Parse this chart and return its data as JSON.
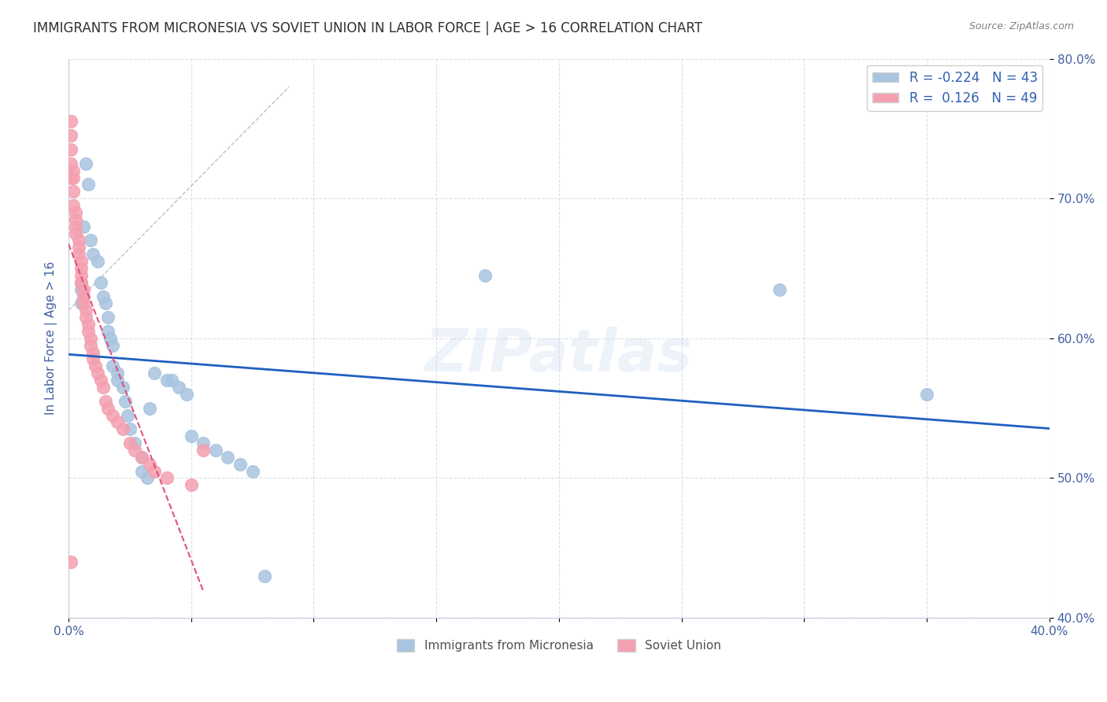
{
  "title": "IMMIGRANTS FROM MICRONESIA VS SOVIET UNION IN LABOR FORCE | AGE > 16 CORRELATION CHART",
  "source": "Source: ZipAtlas.com",
  "ylabel": "In Labor Force | Age > 16",
  "x_min": 0.0,
  "x_max": 0.4,
  "y_min": 0.4,
  "y_max": 0.8,
  "y_ticks": [
    0.4,
    0.5,
    0.6,
    0.7,
    0.8
  ],
  "micronesia_color": "#a8c4e0",
  "soviet_color": "#f4a0b0",
  "trendline_micronesia_color": "#2060c0",
  "trendline_soviet_color": "#e05080",
  "trendline_diagonal_color": "#c0c0c0",
  "legend_micronesia_label": "Immigrants from Micronesia",
  "legend_soviet_label": "Soviet Union",
  "r_micronesia": -0.224,
  "n_micronesia": 43,
  "r_soviet": 0.126,
  "n_soviet": 49,
  "micronesia_x": [
    0.005,
    0.005,
    0.005,
    0.006,
    0.007,
    0.008,
    0.009,
    0.01,
    0.012,
    0.013,
    0.014,
    0.015,
    0.016,
    0.016,
    0.017,
    0.018,
    0.018,
    0.02,
    0.02,
    0.022,
    0.023,
    0.024,
    0.025,
    0.027,
    0.03,
    0.03,
    0.032,
    0.033,
    0.035,
    0.04,
    0.042,
    0.045,
    0.048,
    0.05,
    0.055,
    0.06,
    0.065,
    0.07,
    0.075,
    0.08,
    0.17,
    0.29,
    0.35
  ],
  "micronesia_y": [
    0.64,
    0.635,
    0.625,
    0.68,
    0.725,
    0.71,
    0.67,
    0.66,
    0.655,
    0.64,
    0.63,
    0.625,
    0.615,
    0.605,
    0.6,
    0.595,
    0.58,
    0.575,
    0.57,
    0.565,
    0.555,
    0.545,
    0.535,
    0.525,
    0.515,
    0.505,
    0.5,
    0.55,
    0.575,
    0.57,
    0.57,
    0.565,
    0.56,
    0.53,
    0.525,
    0.52,
    0.515,
    0.51,
    0.505,
    0.43,
    0.645,
    0.635,
    0.56
  ],
  "soviet_x": [
    0.001,
    0.001,
    0.001,
    0.001,
    0.001,
    0.002,
    0.002,
    0.002,
    0.002,
    0.003,
    0.003,
    0.003,
    0.003,
    0.004,
    0.004,
    0.004,
    0.005,
    0.005,
    0.005,
    0.005,
    0.006,
    0.006,
    0.006,
    0.007,
    0.007,
    0.008,
    0.008,
    0.009,
    0.009,
    0.01,
    0.01,
    0.011,
    0.012,
    0.013,
    0.014,
    0.015,
    0.016,
    0.018,
    0.02,
    0.022,
    0.025,
    0.027,
    0.03,
    0.033,
    0.035,
    0.04,
    0.05,
    0.055,
    0.001
  ],
  "soviet_y": [
    0.755,
    0.745,
    0.735,
    0.725,
    0.715,
    0.72,
    0.715,
    0.705,
    0.695,
    0.69,
    0.685,
    0.68,
    0.675,
    0.67,
    0.665,
    0.66,
    0.655,
    0.65,
    0.645,
    0.64,
    0.635,
    0.63,
    0.625,
    0.62,
    0.615,
    0.61,
    0.605,
    0.6,
    0.595,
    0.59,
    0.585,
    0.58,
    0.575,
    0.57,
    0.565,
    0.555,
    0.55,
    0.545,
    0.54,
    0.535,
    0.525,
    0.52,
    0.515,
    0.51,
    0.505,
    0.5,
    0.495,
    0.52,
    0.44
  ],
  "watermark": "ZIPatlas",
  "background_color": "#ffffff",
  "grid_color": "#d0d8e8",
  "title_color": "#303030",
  "axis_label_color": "#4060a0",
  "tick_label_color": "#4060a0"
}
